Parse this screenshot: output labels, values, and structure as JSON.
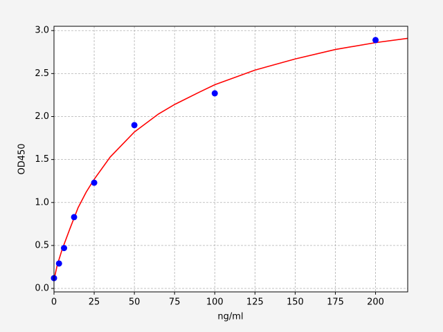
{
  "chart_data": {
    "type": "scatter",
    "xlabel": "ng/ml",
    "ylabel": "OD450",
    "xlim": [
      0,
      220
    ],
    "ylim": [
      -0.04,
      3.05
    ],
    "xticks": [
      0,
      25,
      50,
      75,
      100,
      125,
      150,
      175,
      200
    ],
    "yticks": [
      {
        "value": 0,
        "label": "0.0"
      },
      0.5,
      {
        "value": 1,
        "label": "1.0"
      },
      1.5,
      {
        "value": 2,
        "label": "2.0"
      },
      2.5,
      {
        "value": 3,
        "label": "3.0"
      }
    ],
    "grid": true,
    "series": [
      {
        "style": "line",
        "color": "#ff0000",
        "x": [
          0,
          2,
          5,
          10,
          15,
          20,
          25,
          35,
          50,
          65,
          75,
          90,
          100,
          125,
          150,
          175,
          200,
          220
        ],
        "values": [
          0.1,
          0.27,
          0.45,
          0.7,
          0.94,
          1.12,
          1.27,
          1.53,
          1.82,
          2.03,
          2.14,
          2.28,
          2.37,
          2.54,
          2.67,
          2.78,
          2.86,
          2.91
        ]
      },
      {
        "style": "markers",
        "color": "#0000ff",
        "x": [
          0,
          3.125,
          6.25,
          12.5,
          25,
          50,
          100,
          200
        ],
        "values": [
          0.12,
          0.29,
          0.47,
          0.83,
          1.23,
          1.9,
          2.27,
          2.89
        ]
      }
    ]
  }
}
